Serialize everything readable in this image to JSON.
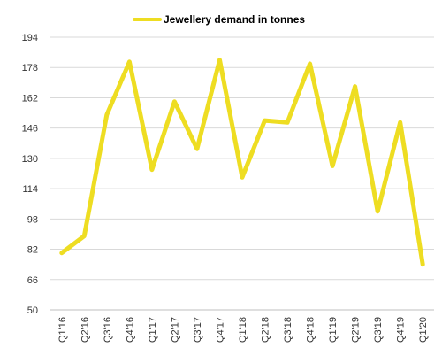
{
  "chart_data": {
    "type": "line",
    "title": "",
    "xlabel": "",
    "ylabel": "",
    "grid": true,
    "legend_position": "top",
    "ylim": [
      50,
      194
    ],
    "yticks": [
      50,
      66,
      82,
      98,
      114,
      130,
      146,
      162,
      178,
      194
    ],
    "categories": [
      "Q1'16",
      "Q2'16",
      "Q3'16",
      "Q4'16",
      "Q1'17",
      "Q2'17",
      "Q3'17",
      "Q4'17",
      "Q1'18",
      "Q2'18",
      "Q3'18",
      "Q4'18",
      "Q1'19",
      "Q2'19",
      "Q3'19",
      "Q4'19",
      "Q1'20"
    ],
    "series": [
      {
        "name": "Jewellery demand in tonnes",
        "color": "#EEDD22",
        "values": [
          80,
          89,
          153,
          181,
          124,
          160,
          135,
          182,
          120,
          150,
          149,
          180,
          126,
          168,
          102,
          149,
          74
        ]
      }
    ]
  }
}
